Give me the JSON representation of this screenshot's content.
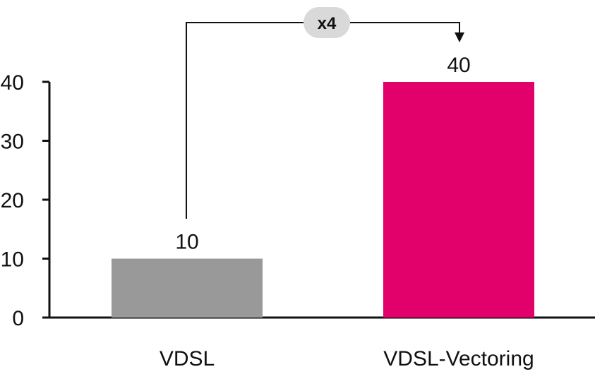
{
  "chart_data": {
    "type": "bar",
    "categories": [
      "VDSL",
      "VDSL-Vectoring"
    ],
    "values": [
      10,
      40
    ],
    "data_labels": [
      "10",
      "40"
    ],
    "ylim": [
      0,
      40
    ],
    "yticks": [
      "0",
      "10",
      "20",
      "30",
      "40"
    ],
    "grid": false,
    "legend": "none",
    "colors": [
      "#999999",
      "#e2006a"
    ],
    "annotation": {
      "text": "x4",
      "from_category": "VDSL",
      "to_category": "VDSL-Vectoring",
      "badge_color": "#d9d9d9"
    }
  }
}
